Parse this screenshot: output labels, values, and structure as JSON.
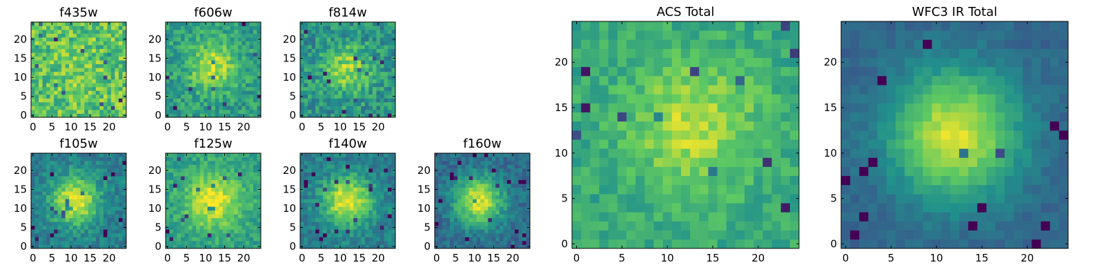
{
  "colormap": "viridis",
  "colormap_stops": [
    "#440154",
    "#3b528b",
    "#21918c",
    "#5ec962",
    "#fde725"
  ],
  "chart_data": [
    {
      "type": "heatmap",
      "title": "f435w",
      "grid_size": 25,
      "xticks": [
        0,
        5,
        10,
        15,
        20
      ],
      "yticks": [
        0,
        5,
        10,
        15,
        20
      ],
      "xlim": [
        0,
        25
      ],
      "ylim": [
        0,
        25
      ],
      "grid": false,
      "peak": [
        12,
        12
      ],
      "sigma": 5,
      "amp": 0.05,
      "background": 0.72,
      "noise": 0.19
    },
    {
      "type": "heatmap",
      "title": "f606w",
      "grid_size": 25,
      "xticks": [
        0,
        5,
        10,
        15,
        20
      ],
      "yticks": [
        0,
        5,
        10,
        15,
        20
      ],
      "xlim": [
        0,
        25
      ],
      "ylim": [
        0,
        25
      ],
      "grid": false,
      "peak": [
        12,
        13
      ],
      "sigma": 4.5,
      "amp": 0.35,
      "background": 0.55,
      "noise": 0.14
    },
    {
      "type": "heatmap",
      "title": "f814w",
      "grid_size": 25,
      "xticks": [
        0,
        5,
        10,
        15,
        20
      ],
      "yticks": [
        0,
        5,
        10,
        15,
        20
      ],
      "xlim": [
        0,
        25
      ],
      "ylim": [
        0,
        25
      ],
      "grid": false,
      "peak": [
        12,
        12
      ],
      "sigma": 4.5,
      "amp": 0.35,
      "background": 0.5,
      "noise": 0.16
    },
    {
      "type": "heatmap",
      "title": "f105w",
      "grid_size": 25,
      "xticks": [
        0,
        5,
        10,
        15,
        20
      ],
      "yticks": [
        0,
        5,
        10,
        15,
        20
      ],
      "xlim": [
        0,
        25
      ],
      "ylim": [
        0,
        25
      ],
      "grid": false,
      "peak": [
        11,
        12
      ],
      "sigma": 4.5,
      "amp": 0.55,
      "background": 0.42,
      "noise": 0.11
    },
    {
      "type": "heatmap",
      "title": "f125w",
      "grid_size": 25,
      "xticks": [
        0,
        5,
        10,
        15,
        20
      ],
      "yticks": [
        0,
        5,
        10,
        15,
        20
      ],
      "xlim": [
        0,
        25
      ],
      "ylim": [
        0,
        25
      ],
      "grid": false,
      "peak": [
        12,
        12
      ],
      "sigma": 5.5,
      "amp": 0.4,
      "background": 0.55,
      "noise": 0.11
    },
    {
      "type": "heatmap",
      "title": "f140w",
      "grid_size": 25,
      "xticks": [
        0,
        5,
        10,
        15,
        20
      ],
      "yticks": [
        0,
        5,
        10,
        15,
        20
      ],
      "xlim": [
        0,
        25
      ],
      "ylim": [
        0,
        25
      ],
      "grid": false,
      "peak": [
        12,
        12
      ],
      "sigma": 4.5,
      "amp": 0.55,
      "background": 0.42,
      "noise": 0.11
    },
    {
      "type": "heatmap",
      "title": "f160w",
      "grid_size": 25,
      "xticks": [
        0,
        5,
        10,
        15,
        20
      ],
      "yticks": [
        0,
        5,
        10,
        15,
        20
      ],
      "xlim": [
        0,
        25
      ],
      "ylim": [
        0,
        25
      ],
      "grid": false,
      "peak": [
        11,
        12
      ],
      "sigma": 4.5,
      "amp": 0.6,
      "background": 0.35,
      "noise": 0.1
    },
    {
      "type": "heatmap",
      "title": "ACS Total",
      "grid_size": 25,
      "xticks": [
        0,
        5,
        10,
        15,
        20
      ],
      "yticks": [
        0,
        5,
        10,
        15,
        20
      ],
      "xlim": [
        0,
        25
      ],
      "ylim": [
        0,
        25
      ],
      "grid": false,
      "peak": [
        13,
        13
      ],
      "sigma": 5,
      "amp": 0.3,
      "background": 0.6,
      "noise": 0.1
    },
    {
      "type": "heatmap",
      "title": "WFC3 IR Total",
      "grid_size": 25,
      "xticks": [
        0,
        5,
        10,
        15,
        20
      ],
      "yticks": [
        0,
        5,
        10,
        15,
        20
      ],
      "xlim": [
        0,
        25
      ],
      "ylim": [
        0,
        25
      ],
      "grid": false,
      "peak": [
        12,
        12
      ],
      "sigma": 5,
      "amp": 0.62,
      "background": 0.32,
      "noise": 0.05
    }
  ]
}
